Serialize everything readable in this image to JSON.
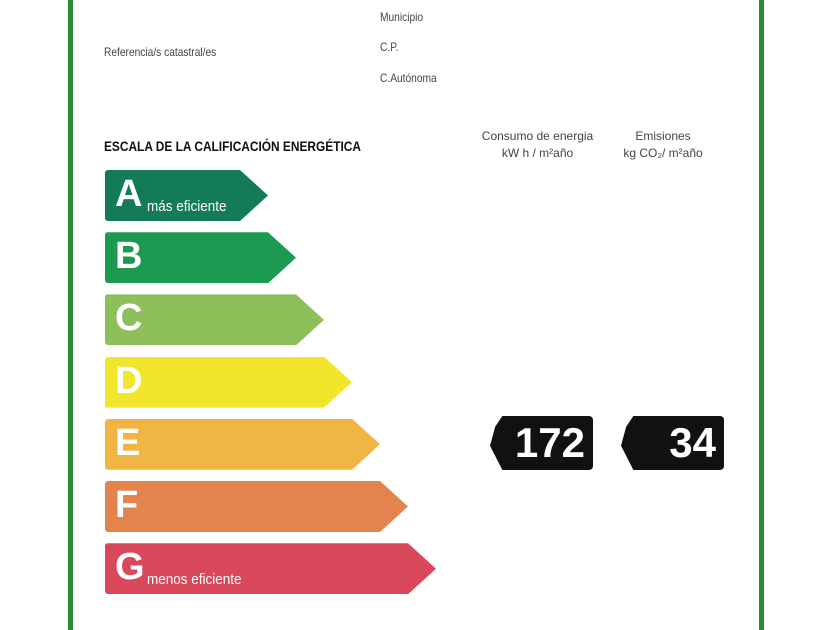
{
  "header": {
    "referencia": "Referencia/s catastral/es",
    "municipio": "Municipio",
    "cp": "C.P.",
    "autonoma": "C.Autónoma"
  },
  "scale": {
    "title": "ESCALA DE LA CALIFICACIÓN ENERGÉTICA",
    "bars": [
      {
        "letter": "A",
        "label": "más eficiente",
        "color": "#137b56"
      },
      {
        "letter": "B",
        "label": "",
        "color": "#1c9a52"
      },
      {
        "letter": "C",
        "label": "",
        "color": "#8dc05b"
      },
      {
        "letter": "D",
        "label": "",
        "color": "#f1e62c"
      },
      {
        "letter": "E",
        "label": "",
        "color": "#f1b544"
      },
      {
        "letter": "F",
        "label": "",
        "color": "#e3844f"
      },
      {
        "letter": "G",
        "label": "menos eficiente",
        "color": "#d8475a"
      }
    ]
  },
  "columns": {
    "consumo": {
      "title": "Consumo de energia",
      "unit": "kW h / m²año",
      "value": "172",
      "rating": "E"
    },
    "emisiones": {
      "title": "Emisiones",
      "unit": "kg CO₂/ m²año",
      "value": "34",
      "rating": "E"
    }
  }
}
